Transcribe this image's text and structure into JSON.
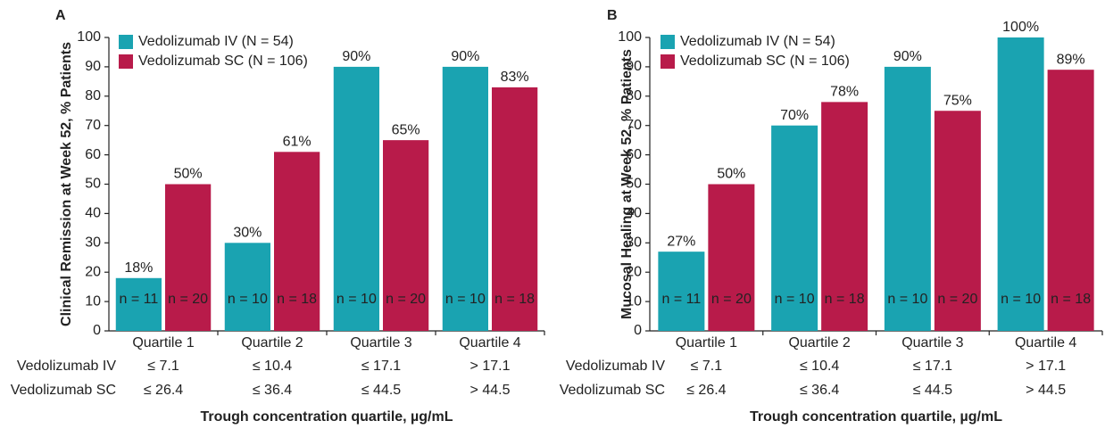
{
  "chart_data": [
    {
      "type": "bar",
      "panel": "A",
      "ylabel": "Clinical Remission at Week 52, % Patients",
      "xlabel": "Trough concentration quartile, µg/mL",
      "categories": [
        "Quartile 1",
        "Quartile 2",
        "Quartile 3",
        "Quartile 4"
      ],
      "series": [
        {
          "name": "Vedolizumab IV (N = 54)",
          "color": "#1aa3b1",
          "values": [
            18,
            30,
            90,
            90
          ],
          "value_labels": [
            "18%",
            "30%",
            "90%",
            "90%"
          ],
          "n_labels": [
            "n = 11",
            "n = 10",
            "n = 10",
            "n = 10"
          ]
        },
        {
          "name": "Vedolizumab SC (N = 106)",
          "color": "#b81b4a",
          "values": [
            50,
            61,
            65,
            83
          ],
          "value_labels": [
            "50%",
            "61%",
            "65%",
            "83%"
          ],
          "n_labels": [
            "n = 20",
            "n = 18",
            "n = 20",
            "n = 18"
          ]
        }
      ],
      "thresholds": [
        {
          "name": "Vedolizumab IV",
          "color": "#1aa3b1",
          "labels": [
            "≤ 7.1",
            "≤ 10.4",
            "≤ 17.1",
            "> 17.1"
          ]
        },
        {
          "name": "Vedolizumab SC",
          "color": "#b81b4a",
          "labels": [
            "≤ 26.4",
            "≤ 36.4",
            "≤ 44.5",
            "> 44.5"
          ]
        }
      ],
      "ylim": [
        0,
        100
      ],
      "yticks": [
        0,
        10,
        20,
        30,
        40,
        50,
        60,
        70,
        80,
        90,
        100
      ]
    },
    {
      "type": "bar",
      "panel": "B",
      "ylabel": "Mucosal Healing at Week 52, % Patients",
      "xlabel": "Trough concentration quartile, µg/mL",
      "categories": [
        "Quartile 1",
        "Quartile 2",
        "Quartile 3",
        "Quartile 4"
      ],
      "series": [
        {
          "name": "Vedolizumab IV (N = 54)",
          "color": "#1aa3b1",
          "values": [
            27,
            70,
            90,
            100
          ],
          "value_labels": [
            "27%",
            "70%",
            "90%",
            "100%"
          ],
          "n_labels": [
            "n = 11",
            "n = 10",
            "n = 10",
            "n = 10"
          ]
        },
        {
          "name": "Vedolizumab SC (N = 106)",
          "color": "#b81b4a",
          "values": [
            50,
            78,
            75,
            89
          ],
          "value_labels": [
            "50%",
            "78%",
            "75%",
            "89%"
          ],
          "n_labels": [
            "n = 20",
            "n = 18",
            "n = 20",
            "n = 18"
          ]
        }
      ],
      "thresholds": [
        {
          "name": "Vedolizumab IV",
          "color": "#1aa3b1",
          "labels": [
            "≤ 7.1",
            "≤ 10.4",
            "≤ 17.1",
            "> 17.1"
          ]
        },
        {
          "name": "Vedolizumab SC",
          "color": "#b81b4a",
          "labels": [
            "≤ 26.4",
            "≤ 36.4",
            "≤ 44.5",
            "> 44.5"
          ]
        }
      ],
      "ylim": [
        0,
        100
      ],
      "yticks": [
        0,
        10,
        20,
        30,
        40,
        50,
        60,
        70,
        80,
        90,
        100
      ]
    }
  ]
}
